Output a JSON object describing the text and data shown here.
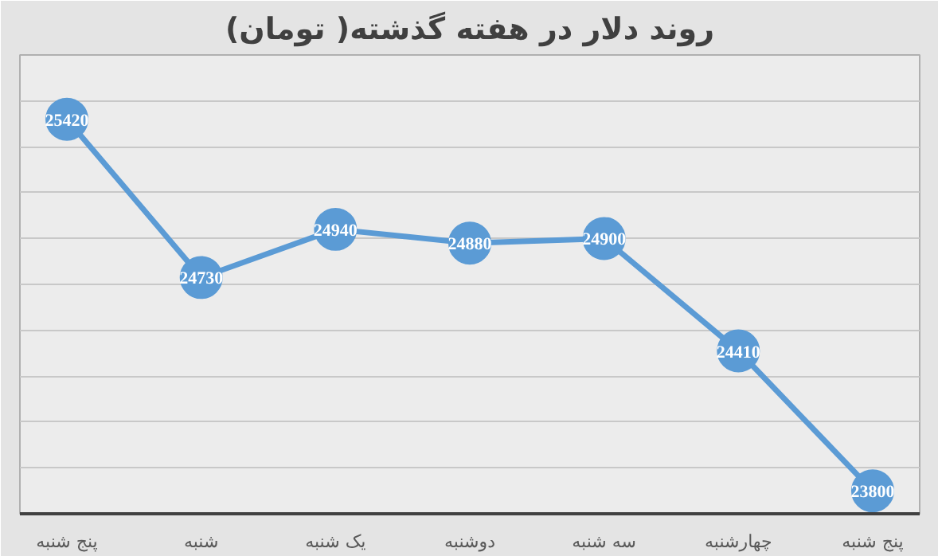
{
  "chart_data": {
    "type": "line",
    "title": "روند دلار در هفته گذشته( تومان)",
    "categories": [
      "پنج شنبه",
      "شنبه",
      "یک شنبه",
      "دوشنبه",
      "سه شنبه",
      "چهارشنبه",
      "پنج شنبه"
    ],
    "series": [
      {
        "color": "#5b9bd5",
        "values": [
          25420,
          24730,
          24940,
          24880,
          24900,
          24410,
          23800
        ]
      }
    ],
    "data_labels": true,
    "marker": "circle",
    "line_style": "solid",
    "grid": "y",
    "tick_labels": "x",
    "ylim": [
      23700,
      25700
    ],
    "yticks": [
      {
        "value": 23700,
        "label": null
      },
      {
        "value": 23900,
        "label": null
      },
      {
        "value": 24100,
        "label": null
      },
      {
        "value": 24300,
        "label": null
      },
      {
        "value": 24500,
        "label": null
      },
      {
        "value": 24700,
        "label": null
      },
      {
        "value": 24900,
        "label": null
      },
      {
        "value": 25100,
        "label": null
      },
      {
        "value": 25300,
        "label": null
      },
      {
        "value": 25500,
        "label": null
      },
      {
        "value": 25700,
        "label": null
      }
    ]
  }
}
